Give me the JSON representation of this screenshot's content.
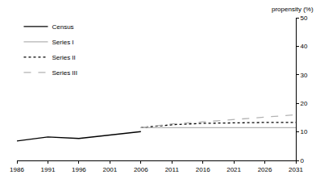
{
  "chart_data": {
    "type": "line",
    "y_label": "propensity (%)",
    "x": [
      1986,
      1991,
      1996,
      2001,
      2006,
      2011,
      2016,
      2021,
      2026,
      2031
    ],
    "series": [
      {
        "name": "Census",
        "color": "#000000",
        "line_style": "solid",
        "values": [
          6.8,
          8.2,
          7.7,
          9.0,
          10.1,
          null,
          null,
          null,
          null,
          null
        ]
      },
      {
        "name": "Series I",
        "color": "#b3b3b3",
        "line_style": "solid",
        "values": [
          null,
          null,
          null,
          null,
          11.5,
          11.5,
          11.5,
          11.5,
          11.5,
          11.5
        ]
      },
      {
        "name": "Series II",
        "color": "#000000",
        "line_style": "dotted",
        "values": [
          null,
          null,
          null,
          null,
          11.5,
          12.5,
          13.0,
          13.2,
          13.3,
          13.3
        ]
      },
      {
        "name": "Series III",
        "color": "#b3b3b3",
        "line_style": "dashed",
        "values": [
          null,
          null,
          null,
          null,
          11.5,
          12.8,
          13.5,
          14.3,
          15.3,
          16.0
        ]
      }
    ],
    "xlim": [
      1986,
      2031
    ],
    "xticks": [
      1986,
      1991,
      1996,
      2001,
      2006,
      2011,
      2016,
      2021,
      2026,
      2031
    ],
    "ylim": [
      0,
      50
    ],
    "yticks": [
      0,
      10,
      20,
      30,
      40,
      50
    ],
    "grid": false,
    "legend": "top-left"
  }
}
